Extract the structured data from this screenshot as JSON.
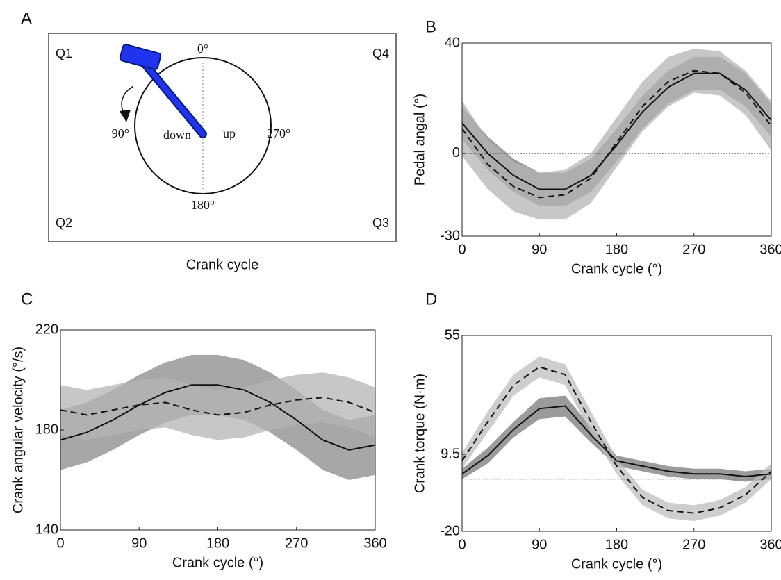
{
  "diagram": {
    "panel": "A",
    "quadrants": [
      "Q1",
      "Q2",
      "Q3",
      "Q4"
    ],
    "angles": [
      "0°",
      "90°",
      "180°",
      "270°"
    ],
    "halves": [
      "down",
      "up"
    ],
    "caption": "Crank cycle"
  },
  "chart_data": [
    {
      "type": "line",
      "panel": "B",
      "xlabel": "Crank cycle (°)",
      "ylabel": "Pedal angal (°)",
      "x": [
        0,
        30,
        60,
        90,
        120,
        150,
        180,
        210,
        240,
        270,
        300,
        330,
        360
      ],
      "xlim": [
        0,
        360
      ],
      "xticks": [
        0,
        90,
        180,
        270,
        360
      ],
      "ylim": [
        -30,
        40
      ],
      "yticks": [
        -30,
        0,
        40
      ],
      "hline": 0,
      "series": [
        {
          "color": "#111",
          "dash": false,
          "band_color": "#7a7a7a",
          "values": [
            11,
            0,
            -8,
            -13,
            -13,
            -8,
            3,
            15,
            24,
            29,
            29,
            23,
            12
          ],
          "upper": [
            17,
            6,
            -2,
            -7,
            -7,
            -2,
            9,
            21,
            30,
            35,
            35,
            29,
            18
          ],
          "lower": [
            5,
            -6,
            -14,
            -19,
            -19,
            -14,
            -3,
            9,
            18,
            23,
            23,
            17,
            6
          ]
        },
        {
          "color": "#111",
          "dash": true,
          "band_color": "#b4b4b4",
          "values": [
            9,
            -4,
            -12,
            -16,
            -15,
            -9,
            4,
            17,
            26,
            30,
            29,
            22,
            10
          ],
          "upper": [
            19,
            5,
            -3,
            -7,
            -6,
            0,
            13,
            26,
            35,
            38,
            37,
            30,
            19
          ],
          "lower": [
            -1,
            -13,
            -21,
            -24,
            -24,
            -18,
            -5,
            8,
            17,
            22,
            21,
            14,
            1
          ]
        }
      ]
    },
    {
      "type": "line",
      "panel": "C",
      "xlabel": "Crank cycle (°)",
      "ylabel": "Crank angular velocity (°/s)",
      "x": [
        0,
        30,
        60,
        90,
        120,
        150,
        180,
        210,
        240,
        270,
        300,
        330,
        360
      ],
      "xlim": [
        0,
        360
      ],
      "xticks": [
        0,
        90,
        180,
        270,
        360
      ],
      "ylim": [
        140,
        220
      ],
      "yticks": [
        140,
        180,
        220
      ],
      "series": [
        {
          "color": "#111",
          "dash": false,
          "band_color": "#8a8a8a",
          "values": [
            176,
            179,
            184,
            190,
            195,
            198,
            198,
            196,
            191,
            184,
            176,
            172,
            174
          ],
          "upper": [
            188,
            191,
            196,
            202,
            207,
            210,
            210,
            208,
            203,
            196,
            188,
            184,
            186
          ],
          "lower": [
            164,
            167,
            172,
            178,
            183,
            186,
            186,
            184,
            179,
            172,
            164,
            160,
            162
          ]
        },
        {
          "color": "#111",
          "dash": true,
          "band_color": "#b4b4b4",
          "values": [
            188,
            186,
            188,
            190,
            191,
            188,
            186,
            187,
            190,
            192,
            193,
            191,
            187
          ],
          "upper": [
            198,
            196,
            198,
            200,
            201,
            198,
            196,
            197,
            200,
            202,
            203,
            201,
            197
          ],
          "lower": [
            178,
            176,
            178,
            180,
            181,
            178,
            176,
            177,
            180,
            182,
            183,
            181,
            177
          ]
        }
      ]
    },
    {
      "type": "line",
      "panel": "D",
      "xlabel": "Crank cycle (°)",
      "ylabel": "Crank torque (N·m)",
      "x": [
        0,
        30,
        60,
        90,
        120,
        150,
        180,
        210,
        240,
        270,
        300,
        330,
        360
      ],
      "xlim": [
        0,
        360
      ],
      "xticks": [
        0,
        90,
        180,
        270,
        360
      ],
      "ylim": [
        -20,
        55
      ],
      "yticks": [
        -20,
        9.5,
        55
      ],
      "hline": 0,
      "series": [
        {
          "color": "#111",
          "dash": false,
          "band_color": "#7a7a7a",
          "values": [
            2,
            9,
            19,
            27,
            28,
            17,
            7,
            5,
            3,
            2,
            2,
            1,
            2
          ],
          "upper": [
            4,
            12,
            22,
            31,
            32,
            20,
            9,
            7,
            5,
            4,
            4,
            3,
            4
          ],
          "lower": [
            0,
            6,
            16,
            23,
            24,
            14,
            5,
            3,
            1,
            0,
            0,
            -1,
            0
          ]
        },
        {
          "color": "#111",
          "dash": true,
          "band_color": "#bdbdbd",
          "values": [
            7,
            22,
            36,
            43,
            40,
            22,
            5,
            -7,
            -12,
            -13,
            -11,
            -6,
            3
          ],
          "upper": [
            10,
            26,
            40,
            47,
            44,
            26,
            8,
            -4,
            -9,
            -10,
            -8,
            -3,
            6
          ],
          "lower": [
            4,
            18,
            32,
            39,
            36,
            18,
            2,
            -10,
            -15,
            -16,
            -14,
            -9,
            0
          ]
        }
      ]
    }
  ]
}
